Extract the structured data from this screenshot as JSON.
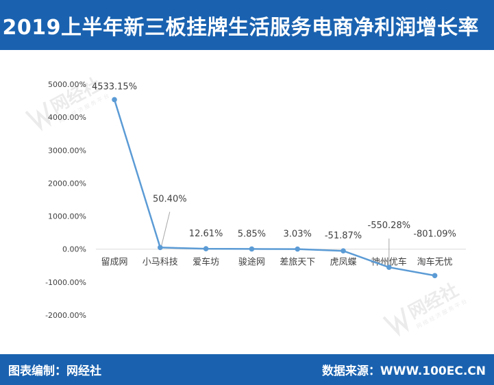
{
  "header": {
    "title": "2019上半年新三板挂牌生活服务电商净利润增长率"
  },
  "footer": {
    "left": "图表编制：网经社",
    "right": "数据来源：WWW.100EC.CN"
  },
  "watermark": {
    "logo_text": "网经社",
    "sub_text": "网 络 经 济 服 务 平 台",
    "url_text": "WWW.100EC.CN"
  },
  "colors": {
    "band": "#1a62b0",
    "line": "#5b9bd5",
    "axis_text": "#404040"
  },
  "chart_data": {
    "type": "line",
    "title": "",
    "xlabel": "",
    "ylabel": "",
    "categories": [
      "留成网",
      "小马科技",
      "爱车坊",
      "骏途网",
      "差旅天下",
      "虎凤蝶",
      "神州优车",
      "淘车无忧"
    ],
    "values": [
      4533.15,
      50.4,
      12.61,
      5.85,
      3.03,
      -51.87,
      -550.28,
      -801.09
    ],
    "data_labels": [
      "4533.15%",
      "50.40%",
      "12.61%",
      "5.85%",
      "3.03%",
      "-51.87%",
      "-550.28%",
      "-801.09%"
    ],
    "y_ticks": [
      5000,
      4000,
      3000,
      2000,
      1000,
      0,
      -1000,
      -2000
    ],
    "y_tick_labels": [
      "5000.00%",
      "4000.00%",
      "3000.00%",
      "2000.00%",
      "1000.00%",
      "0.00%",
      "-1000.00%",
      "-2000.00%"
    ],
    "ylim": [
      -2000,
      5000
    ],
    "grid": false,
    "legend": "none"
  }
}
